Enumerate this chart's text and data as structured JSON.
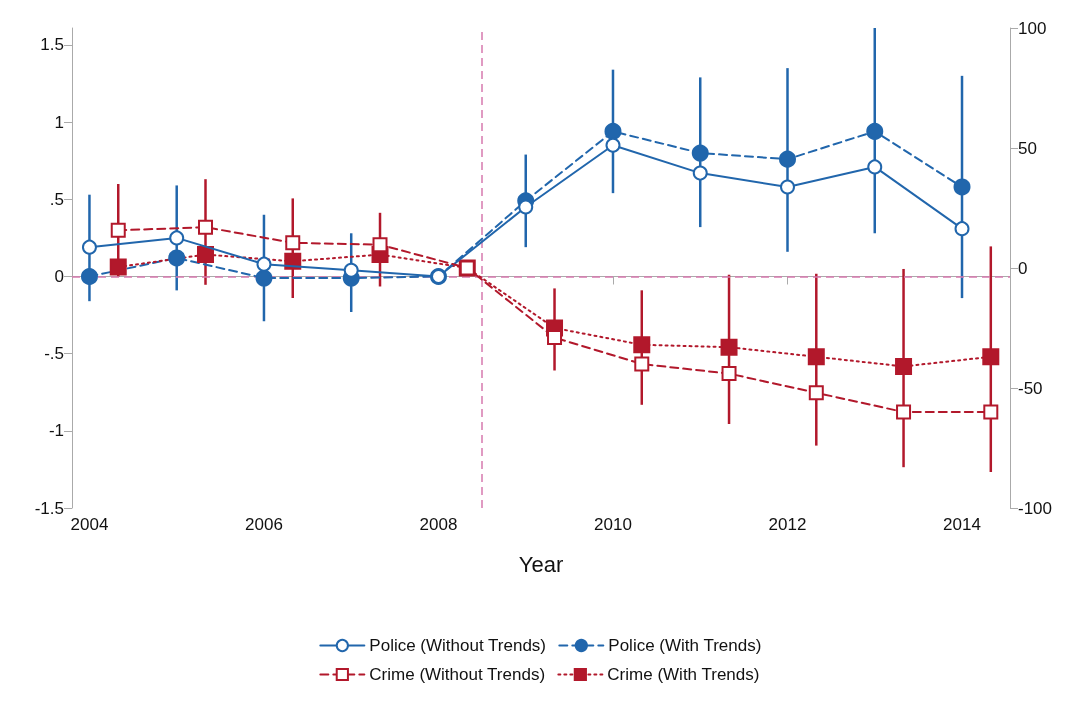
{
  "chart_data": {
    "type": "line",
    "xlabel": "Year",
    "xlim": [
      2003.8,
      2014.55
    ],
    "xticks": [
      2004,
      2006,
      2008,
      2010,
      2012,
      2014
    ],
    "ylim": [
      -1.5,
      1.61
    ],
    "yticks": [
      {
        "value": -1.5,
        "label": "-1.5"
      },
      {
        "value": -1,
        "label": "-1"
      },
      {
        "value": -0.5,
        "label": "-.5"
      },
      {
        "value": 0,
        "label": "0"
      },
      {
        "value": 0.5,
        "label": ".5"
      },
      {
        "value": 1,
        "label": "1"
      },
      {
        "value": 1.5,
        "label": "1.5"
      }
    ],
    "y2lim": [
      -100,
      100
    ],
    "y2ticks": [
      -100,
      -50,
      0,
      50,
      100
    ],
    "grid": false,
    "legend": "bottom",
    "ref_lines": [
      {
        "axis": "y",
        "value": 0,
        "color": "#d679ae",
        "line_style": "dashed"
      },
      {
        "axis": "x",
        "value": 2008.5,
        "color": "#d679ae",
        "line_style": "dashed"
      }
    ],
    "series": [
      {
        "name": "Police (Without Trends)",
        "color": "#2166ac",
        "marker": "circle",
        "line_style": "solid",
        "x": [
          2004,
          2005,
          2006,
          2007,
          2008,
          2009,
          2010,
          2011,
          2012,
          2013,
          2014
        ],
        "values": [
          0.19,
          0.25,
          0.08,
          0.04,
          0,
          0.45,
          0.85,
          0.67,
          0.58,
          0.71,
          0.31
        ],
        "errors": [
          [
            -0.16,
            0.53
          ],
          [
            -0.09,
            0.59
          ],
          [
            -0.29,
            0.4
          ],
          [
            -0.23,
            0.28
          ],
          null,
          null,
          null,
          null,
          null,
          null,
          null
        ]
      },
      {
        "name": "Police (With Trends)",
        "color": "#2166ac",
        "marker": "circle",
        "line_style": "dashed",
        "x": [
          2004,
          2005,
          2006,
          2007,
          2008,
          2009,
          2010,
          2011,
          2012,
          2013,
          2014
        ],
        "values": [
          0,
          0.12,
          -0.01,
          -0.01,
          0,
          0.49,
          0.94,
          0.8,
          0.76,
          0.94,
          0.58
        ],
        "errors": [
          null,
          null,
          null,
          null,
          null,
          [
            0.19,
            0.79
          ],
          [
            0.54,
            1.34
          ],
          [
            0.32,
            1.29
          ],
          [
            0.16,
            1.35
          ],
          [
            0.28,
            1.61
          ],
          [
            -0.14,
            1.3
          ]
        ]
      },
      {
        "name": "Crime (Without Trends)",
        "color": "#b2182b",
        "marker": "square",
        "line_style": "dashed",
        "axis": "y2",
        "x": [
          2004.33,
          2005.33,
          2006.33,
          2007.33,
          2008.33,
          2009.33,
          2010.33,
          2011.33,
          2012.33,
          2013.33,
          2014.33
        ],
        "values": [
          15.7,
          17,
          10.5,
          9.7,
          0,
          -29,
          -40,
          -44,
          -52,
          -60,
          -60
        ],
        "errors": [
          [
            -3.6,
            35
          ],
          [
            -7,
            37
          ],
          [
            -12.5,
            29
          ],
          [
            -7.7,
            23
          ],
          null,
          null,
          null,
          null,
          null,
          null,
          null
        ]
      },
      {
        "name": "Crime (With Trends)",
        "color": "#b2182b",
        "marker": "square",
        "line_style": "dotted",
        "axis": "y2",
        "x": [
          2004.33,
          2005.33,
          2006.33,
          2007.33,
          2008.33,
          2009.33,
          2010.33,
          2011.33,
          2012.33,
          2013.33,
          2014.33
        ],
        "values": [
          0.4,
          5.6,
          2.8,
          5.6,
          0,
          -25,
          -32,
          -33,
          -37,
          -41,
          -37
        ],
        "errors": [
          null,
          null,
          null,
          null,
          null,
          [
            -42.7,
            -8.5
          ],
          [
            -57,
            -9.3
          ],
          [
            -65,
            -2.8
          ],
          [
            -74,
            -2.4
          ],
          [
            -83,
            -0.4
          ],
          [
            -85,
            9
          ]
        ]
      }
    ]
  }
}
